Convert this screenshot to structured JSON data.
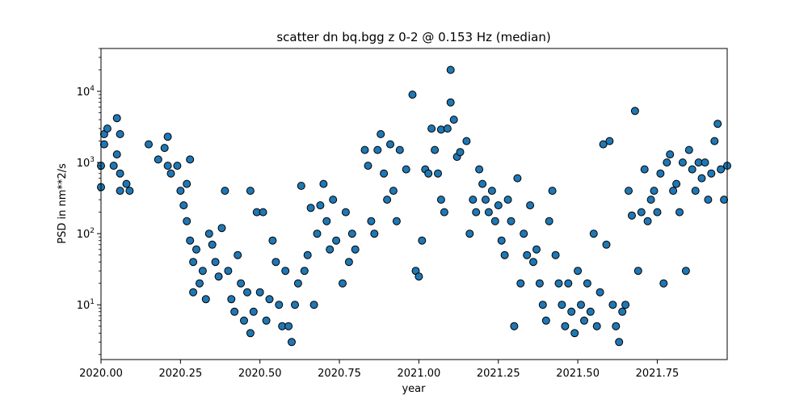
{
  "chart_data": {
    "type": "scatter",
    "title": "scatter dn bq.bgg z 0-2 @ 0.153 Hz (median)",
    "xlabel": "year",
    "ylabel": "PSD in nm**2/s",
    "x_ticks": [
      "2020.00",
      "2020.25",
      "2020.50",
      "2020.75",
      "2021.00",
      "2021.25",
      "2021.50",
      "2021.75"
    ],
    "y_ticks": [
      "10^1",
      "10^2",
      "10^3",
      "10^4"
    ],
    "xlim": [
      2020.0,
      2021.97
    ],
    "ylim": [
      1.7,
      40000
    ],
    "y_scale": "log",
    "grid": false,
    "marker_color": "#1f77b4",
    "marker_edge": "#000000",
    "series": [
      {
        "points": [
          [
            2020.0,
            450
          ],
          [
            2020.0,
            900
          ],
          [
            2020.01,
            2500
          ],
          [
            2020.01,
            1800
          ],
          [
            2020.02,
            3000
          ],
          [
            2020.04,
            900
          ],
          [
            2020.05,
            1300
          ],
          [
            2020.05,
            4200
          ],
          [
            2020.06,
            2500
          ],
          [
            2020.06,
            700
          ],
          [
            2020.06,
            400
          ],
          [
            2020.08,
            500
          ],
          [
            2020.09,
            400
          ],
          [
            2020.15,
            1800
          ],
          [
            2020.18,
            1100
          ],
          [
            2020.2,
            1600
          ],
          [
            2020.21,
            2300
          ],
          [
            2020.21,
            900
          ],
          [
            2020.22,
            700
          ],
          [
            2020.24,
            900
          ],
          [
            2020.25,
            400
          ],
          [
            2020.26,
            250
          ],
          [
            2020.27,
            150
          ],
          [
            2020.27,
            500
          ],
          [
            2020.28,
            1100
          ],
          [
            2020.28,
            80
          ],
          [
            2020.29,
            40
          ],
          [
            2020.29,
            15
          ],
          [
            2020.3,
            60
          ],
          [
            2020.31,
            20
          ],
          [
            2020.32,
            30
          ],
          [
            2020.33,
            12
          ],
          [
            2020.34,
            100
          ],
          [
            2020.35,
            70
          ],
          [
            2020.36,
            40
          ],
          [
            2020.37,
            25
          ],
          [
            2020.38,
            120
          ],
          [
            2020.39,
            400
          ],
          [
            2020.4,
            30
          ],
          [
            2020.41,
            12
          ],
          [
            2020.42,
            8
          ],
          [
            2020.43,
            50
          ],
          [
            2020.44,
            20
          ],
          [
            2020.45,
            6
          ],
          [
            2020.46,
            15
          ],
          [
            2020.47,
            400
          ],
          [
            2020.47,
            4
          ],
          [
            2020.48,
            8
          ],
          [
            2020.49,
            200
          ],
          [
            2020.5,
            15
          ],
          [
            2020.51,
            200
          ],
          [
            2020.52,
            6
          ],
          [
            2020.53,
            12
          ],
          [
            2020.54,
            80
          ],
          [
            2020.55,
            40
          ],
          [
            2020.56,
            10
          ],
          [
            2020.57,
            5
          ],
          [
            2020.58,
            30
          ],
          [
            2020.59,
            5
          ],
          [
            2020.6,
            3
          ],
          [
            2020.61,
            10
          ],
          [
            2020.62,
            20
          ],
          [
            2020.63,
            470
          ],
          [
            2020.64,
            30
          ],
          [
            2020.65,
            50
          ],
          [
            2020.66,
            230
          ],
          [
            2020.67,
            10
          ],
          [
            2020.68,
            100
          ],
          [
            2020.69,
            250
          ],
          [
            2020.7,
            500
          ],
          [
            2020.71,
            150
          ],
          [
            2020.72,
            60
          ],
          [
            2020.73,
            300
          ],
          [
            2020.74,
            80
          ],
          [
            2020.76,
            20
          ],
          [
            2020.77,
            200
          ],
          [
            2020.78,
            40
          ],
          [
            2020.79,
            100
          ],
          [
            2020.8,
            60
          ],
          [
            2020.83,
            1500
          ],
          [
            2020.84,
            900
          ],
          [
            2020.85,
            150
          ],
          [
            2020.86,
            100
          ],
          [
            2020.87,
            1500
          ],
          [
            2020.88,
            2500
          ],
          [
            2020.89,
            700
          ],
          [
            2020.9,
            300
          ],
          [
            2020.91,
            1800
          ],
          [
            2020.92,
            400
          ],
          [
            2020.93,
            150
          ],
          [
            2020.94,
            1500
          ],
          [
            2020.96,
            800
          ],
          [
            2020.98,
            9000
          ],
          [
            2020.99,
            30
          ],
          [
            2021.0,
            25
          ],
          [
            2021.01,
            80
          ],
          [
            2021.02,
            800
          ],
          [
            2021.03,
            700
          ],
          [
            2021.04,
            3000
          ],
          [
            2021.05,
            1500
          ],
          [
            2021.06,
            700
          ],
          [
            2021.07,
            300
          ],
          [
            2021.07,
            2900
          ],
          [
            2021.08,
            200
          ],
          [
            2021.09,
            3000
          ],
          [
            2021.1,
            20000
          ],
          [
            2021.1,
            7000
          ],
          [
            2021.11,
            4000
          ],
          [
            2021.12,
            1200
          ],
          [
            2021.13,
            1400
          ],
          [
            2021.15,
            2000
          ],
          [
            2021.16,
            100
          ],
          [
            2021.17,
            300
          ],
          [
            2021.18,
            200
          ],
          [
            2021.19,
            800
          ],
          [
            2021.2,
            500
          ],
          [
            2021.21,
            300
          ],
          [
            2021.22,
            200
          ],
          [
            2021.23,
            400
          ],
          [
            2021.24,
            150
          ],
          [
            2021.25,
            250
          ],
          [
            2021.26,
            80
          ],
          [
            2021.27,
            50
          ],
          [
            2021.28,
            300
          ],
          [
            2021.29,
            150
          ],
          [
            2021.3,
            5
          ],
          [
            2021.31,
            600
          ],
          [
            2021.32,
            20
          ],
          [
            2021.33,
            100
          ],
          [
            2021.34,
            50
          ],
          [
            2021.35,
            250
          ],
          [
            2021.36,
            40
          ],
          [
            2021.37,
            60
          ],
          [
            2021.38,
            20
          ],
          [
            2021.39,
            10
          ],
          [
            2021.4,
            6
          ],
          [
            2021.41,
            150
          ],
          [
            2021.42,
            400
          ],
          [
            2021.43,
            50
          ],
          [
            2021.44,
            20
          ],
          [
            2021.45,
            10
          ],
          [
            2021.46,
            5
          ],
          [
            2021.47,
            20
          ],
          [
            2021.48,
            8
          ],
          [
            2021.49,
            4
          ],
          [
            2021.5,
            30
          ],
          [
            2021.51,
            10
          ],
          [
            2021.52,
            6
          ],
          [
            2021.53,
            20
          ],
          [
            2021.54,
            8
          ],
          [
            2021.55,
            100
          ],
          [
            2021.56,
            5
          ],
          [
            2021.57,
            15
          ],
          [
            2021.58,
            1800
          ],
          [
            2021.59,
            70
          ],
          [
            2021.6,
            2000
          ],
          [
            2021.61,
            10
          ],
          [
            2021.62,
            5
          ],
          [
            2021.63,
            3
          ],
          [
            2021.64,
            8
          ],
          [
            2021.65,
            10
          ],
          [
            2021.66,
            400
          ],
          [
            2021.67,
            180
          ],
          [
            2021.68,
            5300
          ],
          [
            2021.69,
            30
          ],
          [
            2021.7,
            200
          ],
          [
            2021.71,
            800
          ],
          [
            2021.72,
            150
          ],
          [
            2021.73,
            300
          ],
          [
            2021.74,
            400
          ],
          [
            2021.75,
            200
          ],
          [
            2021.76,
            700
          ],
          [
            2021.77,
            20
          ],
          [
            2021.78,
            1000
          ],
          [
            2021.79,
            1300
          ],
          [
            2021.8,
            400
          ],
          [
            2021.81,
            500
          ],
          [
            2021.82,
            200
          ],
          [
            2021.83,
            1000
          ],
          [
            2021.84,
            30
          ],
          [
            2021.85,
            1500
          ],
          [
            2021.86,
            800
          ],
          [
            2021.87,
            400
          ],
          [
            2021.88,
            1000
          ],
          [
            2021.89,
            600
          ],
          [
            2021.9,
            1000
          ],
          [
            2021.91,
            300
          ],
          [
            2021.92,
            700
          ],
          [
            2021.93,
            2000
          ],
          [
            2021.94,
            3500
          ],
          [
            2021.95,
            800
          ],
          [
            2021.96,
            300
          ],
          [
            2021.97,
            900
          ]
        ]
      }
    ]
  }
}
